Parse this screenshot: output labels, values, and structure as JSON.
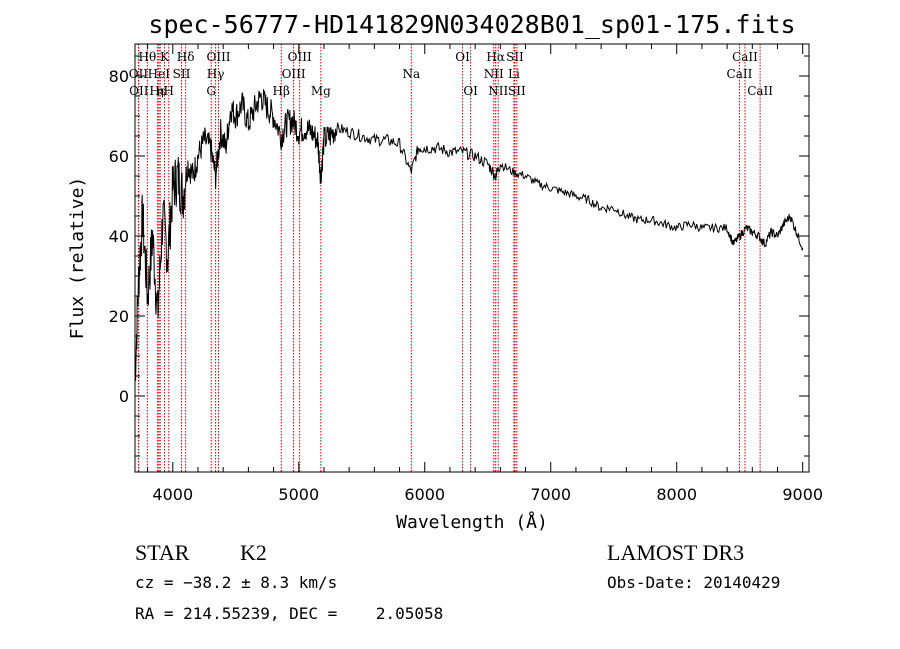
{
  "chart_data": {
    "type": "line",
    "title": "spec-56777-HD141829N034028B01_sp01-175.fits",
    "xlabel": "Wavelength (Å)",
    "ylabel": "Flux (relative)",
    "xlim": [
      3700,
      9050
    ],
    "ylim": [
      -19,
      88
    ],
    "xticks": [
      4000,
      5000,
      6000,
      7000,
      8000,
      9000
    ],
    "xtick_labels": [
      "4000",
      "5000",
      "6000",
      "7000",
      "8000",
      "9000"
    ],
    "yticks": [
      0,
      20,
      40,
      60,
      80
    ],
    "ytick_labels": [
      "0",
      "20",
      "40",
      "60",
      "80"
    ],
    "grid": false,
    "series": [
      {
        "name": "spectrum",
        "color": "#000000",
        "x": [
          3700,
          3730,
          3760,
          3800,
          3840,
          3880,
          3920,
          3960,
          4000,
          4040,
          4080,
          4120,
          4160,
          4200,
          4250,
          4300,
          4340,
          4380,
          4420,
          4460,
          4500,
          4550,
          4600,
          4650,
          4700,
          4750,
          4800,
          4861,
          4900,
          4950,
          5000,
          5050,
          5100,
          5150,
          5175,
          5200,
          5250,
          5300,
          5400,
          5500,
          5600,
          5700,
          5800,
          5890,
          5950,
          6000,
          6100,
          6200,
          6300,
          6400,
          6500,
          6563,
          6600,
          6700,
          6800,
          6900,
          7000,
          7100,
          7200,
          7300,
          7400,
          7500,
          7600,
          7700,
          7800,
          7900,
          8000,
          8100,
          8200,
          8300,
          8400,
          8450,
          8500,
          8550,
          8600,
          8650,
          8700,
          8750,
          8800,
          8850,
          8900,
          8950,
          9000
        ],
        "values": [
          5,
          30,
          45,
          25,
          40,
          20,
          45,
          35,
          52,
          55,
          50,
          58,
          55,
          60,
          64,
          62,
          55,
          66,
          62,
          72,
          70,
          73,
          68,
          72,
          75,
          72,
          70,
          65,
          68,
          69,
          66,
          67,
          66,
          64,
          55,
          64,
          65,
          67,
          66,
          65,
          64,
          64,
          63,
          56,
          62,
          62,
          62,
          61,
          61,
          60,
          58,
          55,
          58,
          56,
          55,
          53,
          52,
          51,
          50,
          49,
          47,
          47,
          45,
          44,
          44,
          43,
          42,
          43,
          42,
          42,
          42,
          38,
          40,
          42,
          41,
          40,
          38,
          41,
          40,
          43,
          45,
          41,
          37
        ]
      }
    ],
    "line_markers": [
      {
        "label": "Hθ",
        "x": 3798,
        "row": 1
      },
      {
        "label": "OII",
        "x": 3727,
        "row": 2
      },
      {
        "label": "OII",
        "x": 3730,
        "row": 3
      },
      {
        "label": "Hε",
        "x": 3880,
        "row": 3
      },
      {
        "label": "HeI",
        "x": 3889,
        "row": 2
      },
      {
        "label": "K",
        "x": 3934,
        "row": 1
      },
      {
        "label": "η",
        "x": 3900,
        "row": 3
      },
      {
        "label": "SII",
        "x": 4069,
        "row": 2
      },
      {
        "label": "H",
        "x": 3968,
        "row": 3
      },
      {
        "label": "Hδ",
        "x": 4102,
        "row": 1
      },
      {
        "label": "OIII",
        "x": 4363,
        "row": 1
      },
      {
        "label": "Hγ",
        "x": 4340,
        "row": 2
      },
      {
        "label": "G",
        "x": 4305,
        "row": 3
      },
      {
        "label": "Hβ",
        "x": 4861,
        "row": 3
      },
      {
        "label": "OIII",
        "x": 5007,
        "row": 1
      },
      {
        "label": "OIII",
        "x": 4959,
        "row": 2
      },
      {
        "label": "Mg",
        "x": 5175,
        "row": 3
      },
      {
        "label": "Na",
        "x": 5893,
        "row": 2
      },
      {
        "label": "OI",
        "x": 6300,
        "row": 1
      },
      {
        "label": "OI",
        "x": 6364,
        "row": 3
      },
      {
        "label": "Hα",
        "x": 6563,
        "row": 1
      },
      {
        "label": "NII",
        "x": 6548,
        "row": 2
      },
      {
        "label": "NII",
        "x": 6583,
        "row": 3
      },
      {
        "label": "SII",
        "x": 6716,
        "row": 1
      },
      {
        "label": "Li",
        "x": 6708,
        "row": 2
      },
      {
        "label": "SII",
        "x": 6731,
        "row": 3
      },
      {
        "label": "CaII",
        "x": 8542,
        "row": 1
      },
      {
        "label": "CaII",
        "x": 8498,
        "row": 2
      },
      {
        "label": "CaII",
        "x": 8662,
        "row": 3
      }
    ]
  },
  "info": {
    "class": "STAR",
    "subclass": "K2",
    "survey": "LAMOST DR3",
    "cz": "cz = −38.2 ± 8.3 km/s",
    "obs_date": "Obs-Date: 20140429",
    "coords": "RA = 214.55239, DEC =    2.05058"
  }
}
